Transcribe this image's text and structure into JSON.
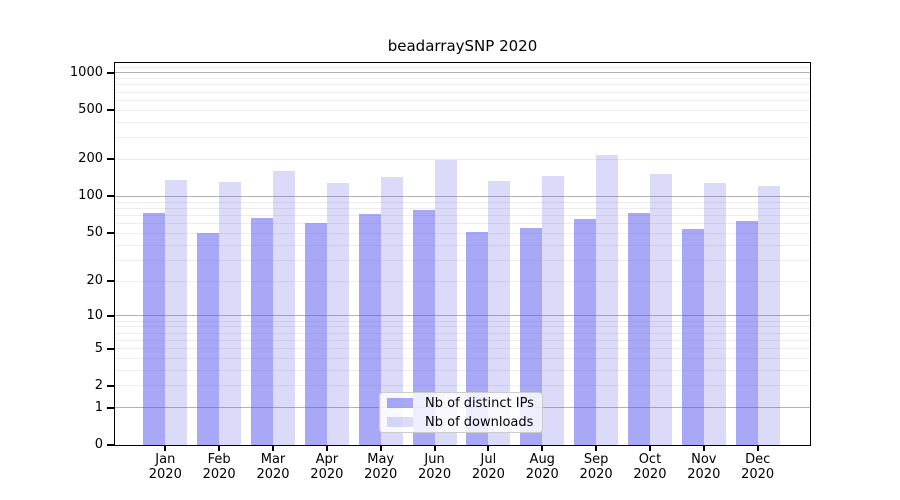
{
  "figure": {
    "background_color": "#ffffff",
    "spine_color": "#000000"
  },
  "chart_data": {
    "type": "bar",
    "title": "beadarraySNP 2020",
    "xlabel": "",
    "ylabel": "",
    "yscale": "log1p",
    "ylim": [
      0,
      1160
    ],
    "grid": true,
    "legend_position": "lower-center",
    "categories": [
      "Jan",
      "Feb",
      "Mar",
      "Apr",
      "May",
      "Jun",
      "Jul",
      "Aug",
      "Sep",
      "Oct",
      "Nov",
      "Dec"
    ],
    "category_year": "2020",
    "series": [
      {
        "name": "Nb of distinct IPs",
        "values": [
          73,
          50,
          67,
          61,
          72,
          77,
          51,
          55,
          66,
          73,
          54,
          63
        ],
        "color": "rgba(81,81,239,0.5)",
        "color_hex_on_white": "#a8a8f7"
      },
      {
        "name": "Nb of downloads",
        "values": [
          137,
          130,
          162,
          128,
          145,
          199,
          134,
          147,
          219,
          153,
          128,
          121
        ],
        "color": "rgba(91,91,228,0.22)",
        "color_hex_on_white": "#dbdbf9"
      }
    ],
    "yticks": [
      0,
      1,
      2,
      5,
      10,
      20,
      50,
      100,
      200,
      500,
      1000
    ],
    "major_gridlines": [
      1,
      10,
      100,
      1000
    ],
    "minor_gridlines": [
      2,
      3,
      4,
      5,
      6,
      7,
      8,
      9,
      20,
      30,
      40,
      50,
      60,
      70,
      80,
      90,
      200,
      300,
      400,
      500,
      600,
      700,
      800,
      900,
      1100
    ],
    "grid_major_color": "#b2b2b2",
    "grid_minor_color": "#ededed"
  }
}
